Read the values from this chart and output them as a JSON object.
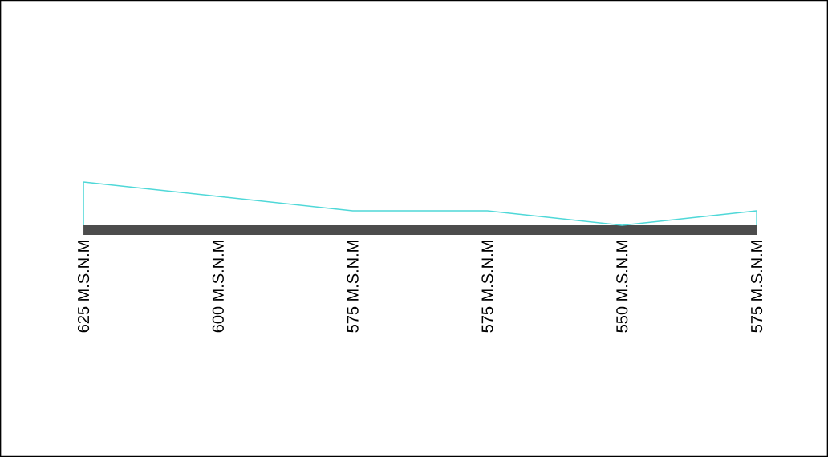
{
  "chart_data": {
    "type": "line",
    "categories": [
      null,
      null,
      null,
      null,
      null,
      null
    ],
    "values": [
      625,
      600,
      575,
      575,
      550,
      575
    ],
    "value_labels": [
      "625 M.S.N.M",
      "600 M.S.N.M",
      "575 M.S.N.M",
      "575 M.S.N.M",
      "550 M.S.N.M",
      "575 M.S.N.M"
    ],
    "color": "#4fd8d8",
    "ylim": [
      149,
      940
    ],
    "bands": [
      {
        "axis": "y",
        "from": 533.3,
        "to": 550,
        "color": "#4c4c4c"
      }
    ],
    "marker": "none",
    "line_style": "solid"
  }
}
